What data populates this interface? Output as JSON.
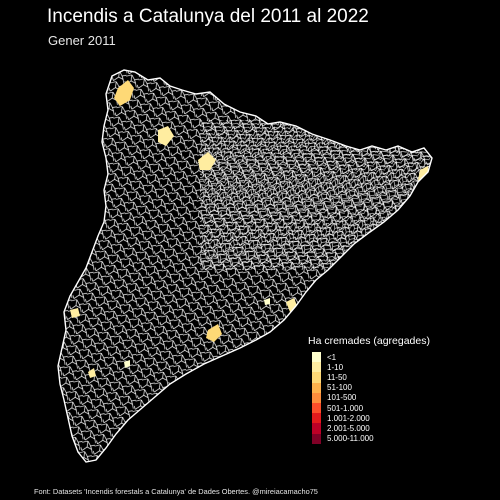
{
  "title": "Incendis a Catalunya del 2011 al 2022",
  "subtitle": "Gener 2011",
  "caption": "Font: Datasets 'Incendis forestals a Catalunya' de Dades Obertes. @mireiacamacho75",
  "legend": {
    "title": "Ha cremades (agregades)",
    "items": [
      {
        "label": "<1",
        "color": "#ffffcc"
      },
      {
        "label": "1-10",
        "color": "#ffeda0"
      },
      {
        "label": "11-50",
        "color": "#fed976"
      },
      {
        "label": "51-100",
        "color": "#feb24c"
      },
      {
        "label": "101-500",
        "color": "#fd8d3c"
      },
      {
        "label": "501-1.000",
        "color": "#fc4e2a"
      },
      {
        "label": "1.001-2.000",
        "color": "#e31a1c"
      },
      {
        "label": "2.001-5.000",
        "color": "#bd0026"
      },
      {
        "label": "5.000-11.000",
        "color": "#800026"
      }
    ]
  },
  "colors": {
    "background": "#000000",
    "borders": "#ffffff"
  }
}
